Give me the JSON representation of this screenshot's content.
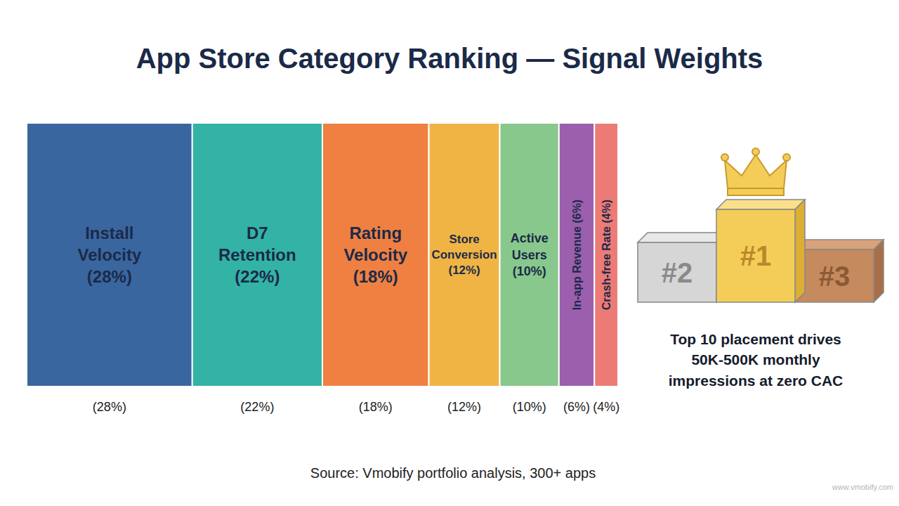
{
  "chart_data": {
    "type": "bar",
    "title": "App Store Category Ranking — Signal Weights",
    "categories": [
      "Install Velocity",
      "D7 Retention",
      "Rating Velocity",
      "Store Conversion",
      "Active Users",
      "In-app Revenue",
      "Crash-free Rate"
    ],
    "values": [
      28,
      22,
      18,
      12,
      10,
      6,
      4
    ],
    "value_labels": [
      "(28%)",
      "(22%)",
      "(18%)",
      "(12%)",
      "(10%)",
      "(6%)",
      "(4%)"
    ],
    "colors": [
      "#3a66a0",
      "#33b3a6",
      "#ef8042",
      "#f0b445",
      "#89c88c",
      "#9b5fae",
      "#ec7b76"
    ],
    "orientation": "horizontal",
    "stacked": true,
    "data_labels": true,
    "tick_labels": false,
    "annotation": "Top 10 placement drives 50K-500K monthly impressions at zero CAC",
    "podium_labels": [
      "#2",
      "#1",
      "#3"
    ],
    "source": "Source: Vmobify portfolio analysis, 300+ apps",
    "watermark": "www.vmobify.com"
  }
}
